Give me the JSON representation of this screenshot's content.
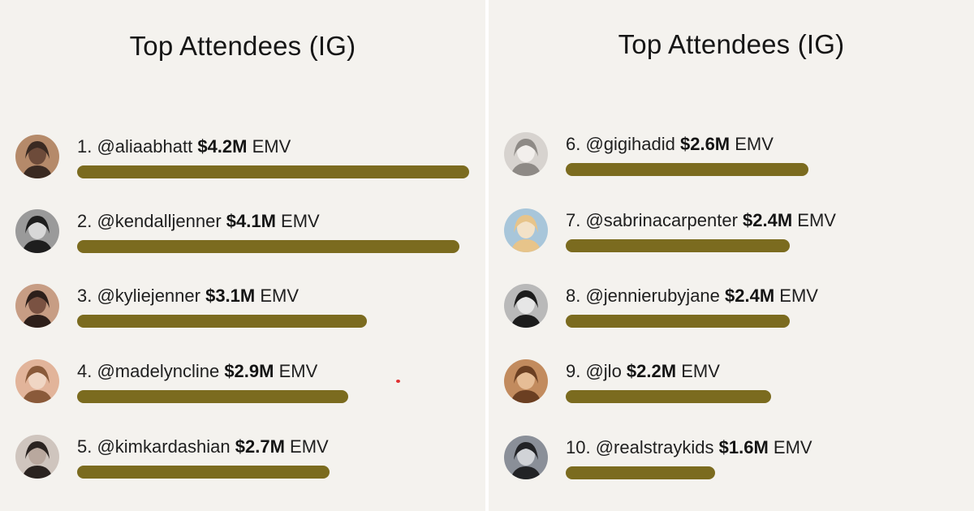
{
  "colors": {
    "bar": "#7b6b1f",
    "background": "#f4f2ee"
  },
  "panels": [
    {
      "title": "Top Attendees (IG)"
    },
    {
      "title": "Top Attendees (IG)"
    }
  ],
  "rows": [
    {
      "prefix": "1. @aliaabhatt ",
      "value": "$4.2M",
      "suffix": " EMV",
      "avatar_icon": "avatar-photo-icon"
    },
    {
      "prefix": "2. @kendalljenner ",
      "value": "$4.1M",
      "suffix": " EMV",
      "avatar_icon": "avatar-photo-icon"
    },
    {
      "prefix": "3. @kyliejenner ",
      "value": "$3.1M",
      "suffix": " EMV",
      "avatar_icon": "avatar-photo-icon"
    },
    {
      "prefix": "4. @madelyncline ",
      "value": "$2.9M",
      "suffix": " EMV",
      "avatar_icon": "avatar-photo-icon"
    },
    {
      "prefix": "5. @kimkardashian ",
      "value": "$2.7M",
      "suffix": " EMV",
      "avatar_icon": "avatar-photo-icon"
    },
    {
      "prefix": "6. @gigihadid ",
      "value": "$2.6M",
      "suffix": " EMV",
      "avatar_icon": "avatar-photo-icon"
    },
    {
      "prefix": "7. @sabrinacarpenter ",
      "value": "$2.4M",
      "suffix": " EMV",
      "avatar_icon": "avatar-photo-icon"
    },
    {
      "prefix": "8. @jennierubyjane ",
      "value": "$2.4M",
      "suffix": " EMV",
      "avatar_icon": "avatar-photo-icon"
    },
    {
      "prefix": "9. @jlo ",
      "value": "$2.2M",
      "suffix": " EMV",
      "avatar_icon": "avatar-photo-icon"
    },
    {
      "prefix": "10. @realstraykids ",
      "value": "$1.6M",
      "suffix": " EMV",
      "avatar_icon": "avatar-photo-icon"
    }
  ],
  "chart_data": {
    "type": "bar",
    "orientation": "horizontal",
    "title": "Top Attendees (IG)",
    "categories": [
      "@aliaabhatt",
      "@kendalljenner",
      "@kyliejenner",
      "@madelyncline",
      "@kimkardashian",
      "@gigihadid",
      "@sabrinacarpenter",
      "@jennierubyjane",
      "@jlo",
      "@realstraykids"
    ],
    "values": [
      4.2,
      4.1,
      3.1,
      2.9,
      2.7,
      2.6,
      2.4,
      2.4,
      2.2,
      1.6
    ],
    "unit": "$M EMV",
    "grid": false,
    "legend": "none"
  }
}
